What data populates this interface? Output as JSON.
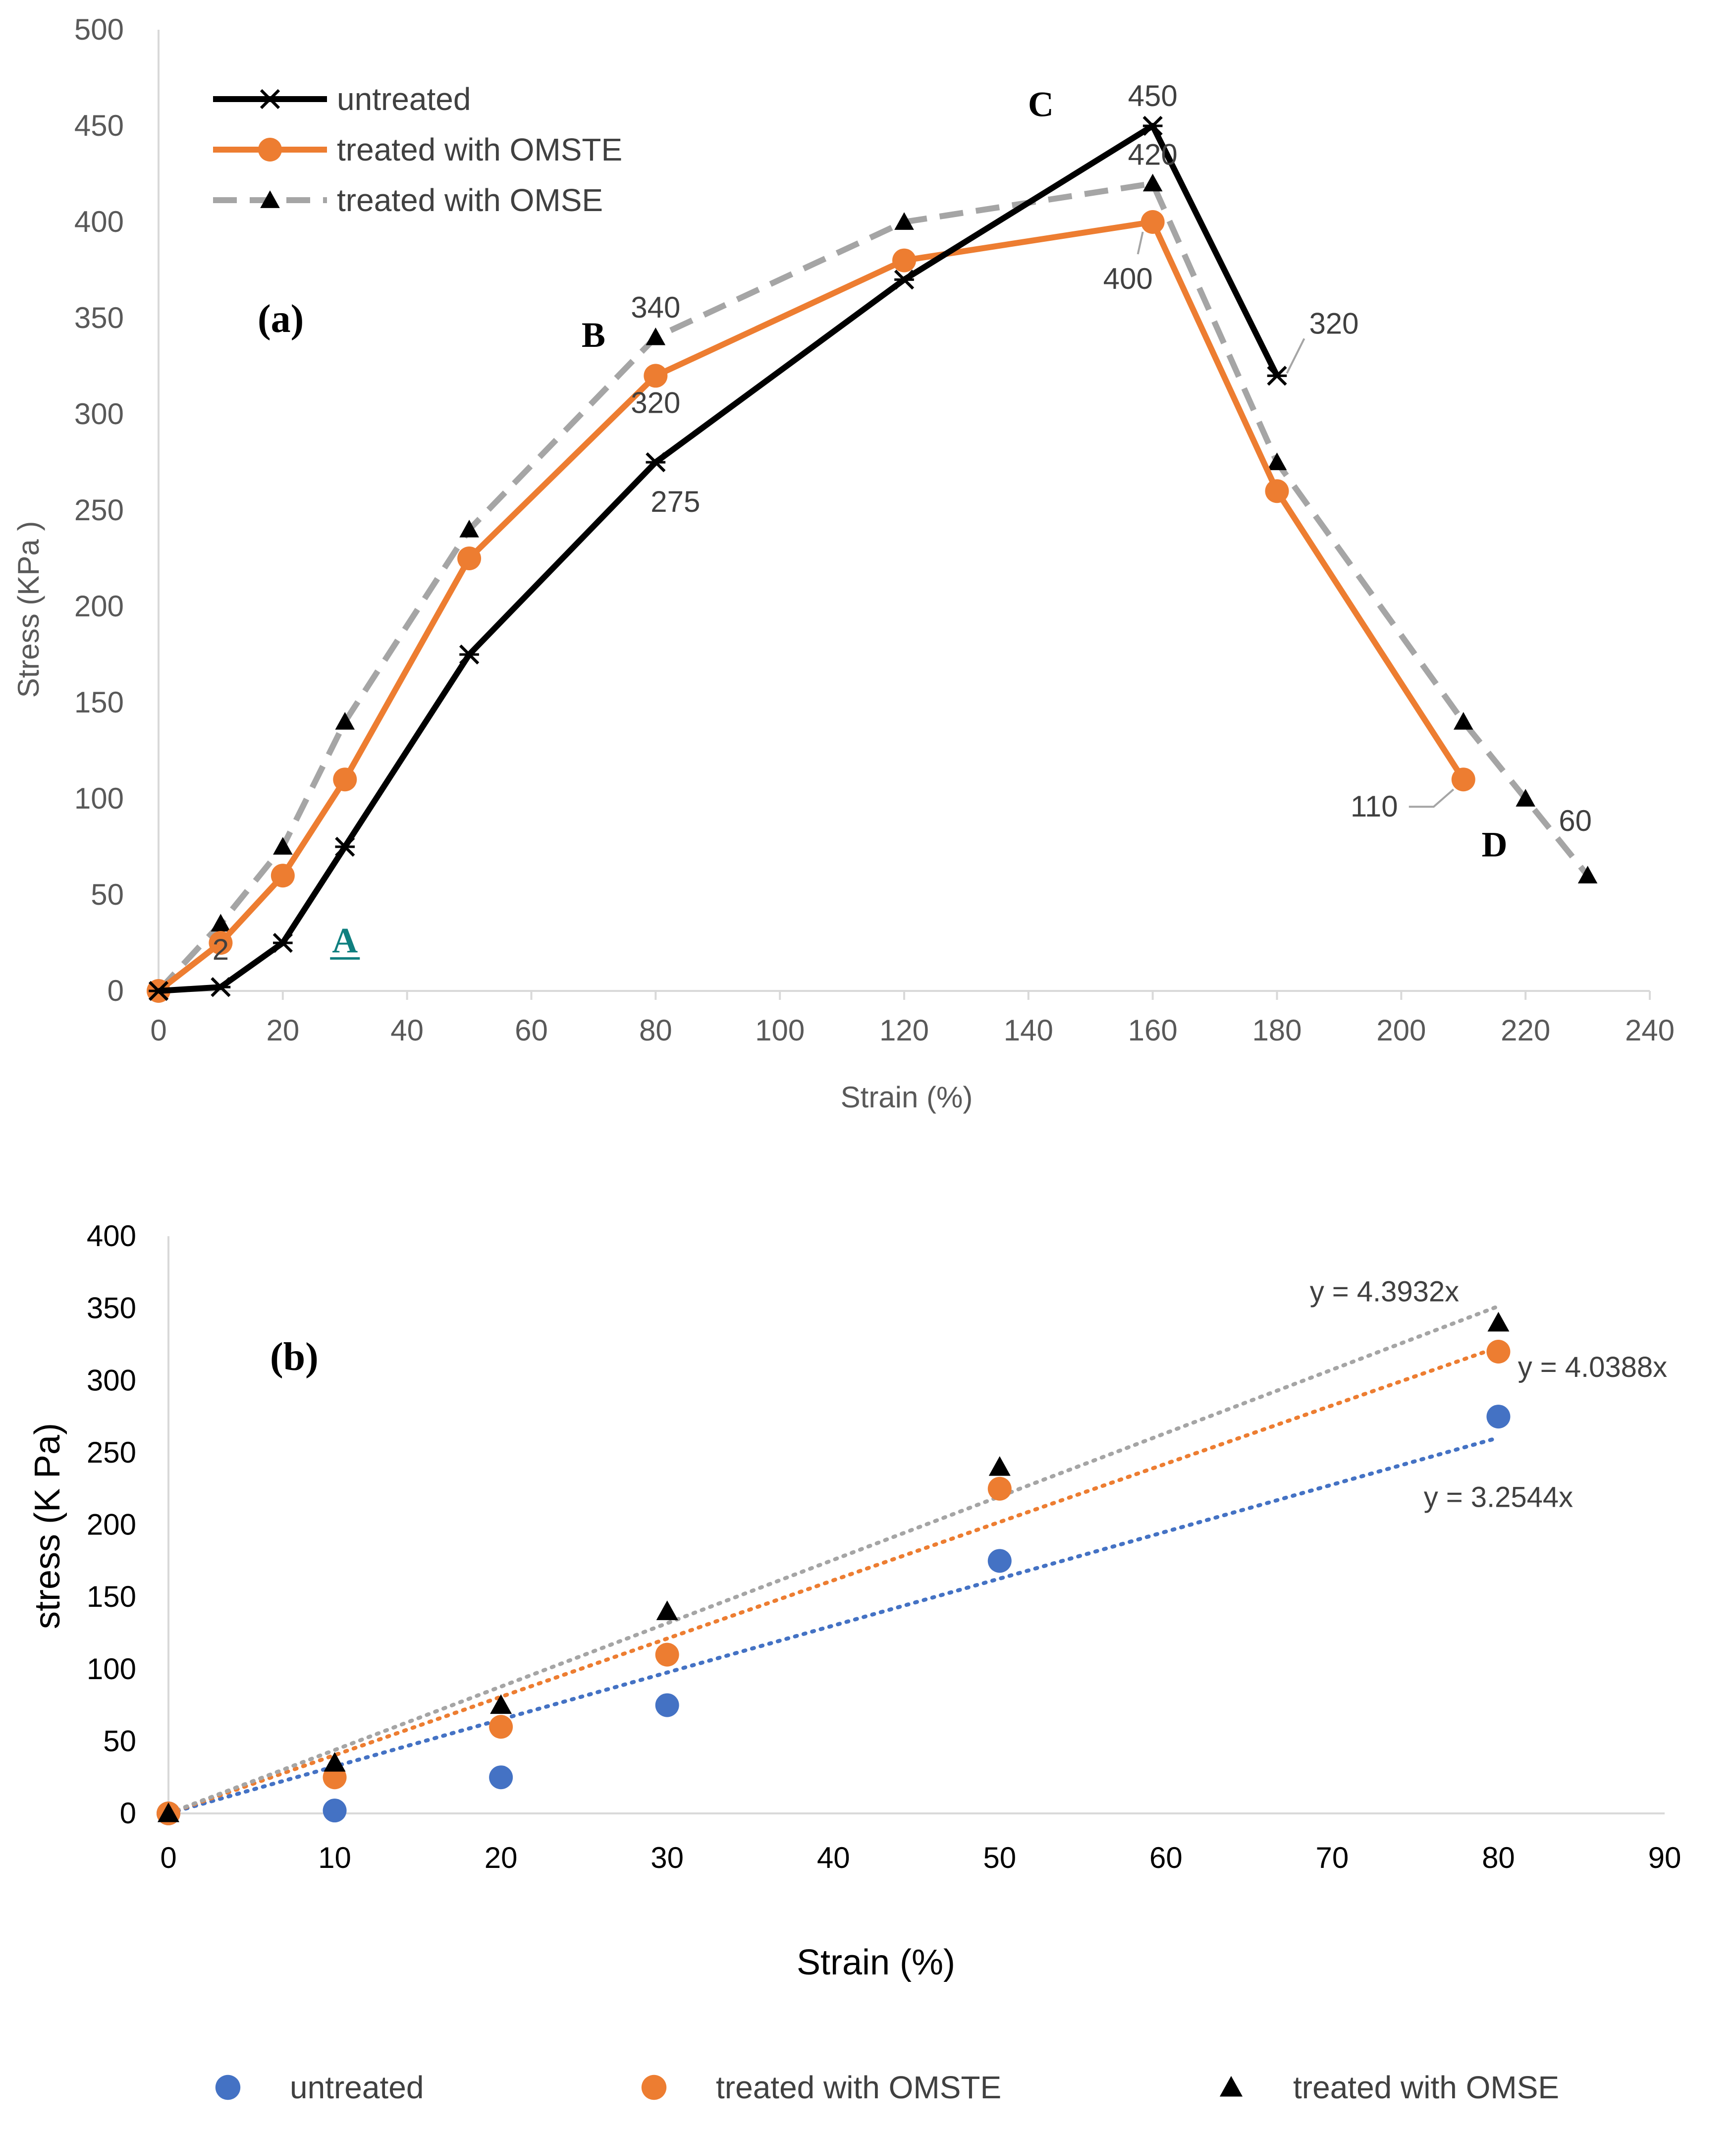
{
  "chart_data": [
    {
      "panel": "(a)",
      "type": "line",
      "xlabel": "Strain (%)",
      "ylabel": "Stress (KPa )",
      "xlim": [
        0,
        240
      ],
      "ylim": [
        0,
        500
      ],
      "xticks": [
        0,
        20,
        40,
        60,
        80,
        100,
        120,
        140,
        160,
        180,
        200,
        220,
        240
      ],
      "yticks": [
        0,
        50,
        100,
        150,
        200,
        250,
        300,
        350,
        400,
        450,
        500
      ],
      "legend_position": "top-left",
      "series": [
        {
          "name": "untreated",
          "color": "#000000",
          "marker": "x",
          "dash": "solid",
          "x": [
            0,
            10,
            20,
            30,
            50,
            80,
            120,
            160,
            180
          ],
          "y": [
            0,
            2,
            25,
            75,
            175,
            275,
            370,
            450,
            320
          ]
        },
        {
          "name": "treated with OMSTE",
          "color": "#ED7D31",
          "marker": "circle",
          "dash": "solid",
          "x": [
            0,
            10,
            20,
            30,
            50,
            80,
            120,
            160,
            180,
            210
          ],
          "y": [
            0,
            25,
            60,
            110,
            225,
            320,
            380,
            400,
            260,
            110
          ]
        },
        {
          "name": "treated with OMSE",
          "color": "#A5A5A5",
          "marker": "triangle",
          "dash": "dashed",
          "x": [
            0,
            10,
            20,
            30,
            50,
            80,
            120,
            160,
            180,
            210,
            220,
            230
          ],
          "y": [
            0,
            35,
            75,
            140,
            240,
            340,
            400,
            420,
            275,
            140,
            100,
            60
          ]
        }
      ],
      "data_labels": [
        {
          "text": "450",
          "x": 160,
          "y": 450
        },
        {
          "text": "420",
          "x": 160,
          "y": 420
        },
        {
          "text": "400",
          "x": 160,
          "y": 400
        },
        {
          "text": "340",
          "x": 80,
          "y": 340
        },
        {
          "text": "320",
          "x": 80,
          "y": 320
        },
        {
          "text": "275",
          "x": 80,
          "y": 275
        },
        {
          "text": "320",
          "x": 180,
          "y": 320
        },
        {
          "text": "110",
          "x": 210,
          "y": 110
        },
        {
          "text": "60",
          "x": 230,
          "y": 60
        },
        {
          "text": "2",
          "x": 10,
          "y": 2
        }
      ],
      "annotations": [
        {
          "text": "A",
          "x": 30,
          "y": 20,
          "color": "#0F7F7F"
        },
        {
          "text": "B",
          "x": 70,
          "y": 335,
          "color": "#000000"
        },
        {
          "text": "C",
          "x": 142,
          "y": 455,
          "color": "#000000"
        },
        {
          "text": "D",
          "x": 215,
          "y": 70,
          "color": "#000000"
        }
      ]
    },
    {
      "panel": "(b)",
      "type": "scatter",
      "xlabel": "Strain (%)",
      "ylabel": "stress (K Pa)",
      "xlim": [
        0,
        90
      ],
      "ylim": [
        0,
        400
      ],
      "xticks": [
        0,
        10,
        20,
        30,
        40,
        50,
        60,
        70,
        80,
        90
      ],
      "yticks": [
        0,
        50,
        100,
        150,
        200,
        250,
        300,
        350,
        400
      ],
      "legend_position": "bottom",
      "series": [
        {
          "name": "untreated",
          "color": "#4472C4",
          "marker": "circle",
          "x": [
            0,
            10,
            20,
            30,
            50,
            80
          ],
          "y": [
            0,
            2,
            25,
            75,
            175,
            275
          ],
          "trendline": {
            "slope": 3.2544,
            "label": "y = 3.2544x"
          }
        },
        {
          "name": "treated with OMSTE",
          "color": "#ED7D31",
          "marker": "circle",
          "x": [
            0,
            10,
            20,
            30,
            50,
            80
          ],
          "y": [
            0,
            25,
            60,
            110,
            225,
            320
          ],
          "trendline": {
            "slope": 4.0388,
            "label": "y = 4.0388x"
          }
        },
        {
          "name": "treated with OMSE",
          "color": "#000000",
          "marker": "triangle",
          "trend_color": "#A5A5A5",
          "x": [
            0,
            10,
            20,
            30,
            50,
            80
          ],
          "y": [
            0,
            35,
            75,
            140,
            240,
            340
          ],
          "trendline": {
            "slope": 4.3932,
            "label": "y = 4.3932x"
          }
        }
      ]
    }
  ]
}
